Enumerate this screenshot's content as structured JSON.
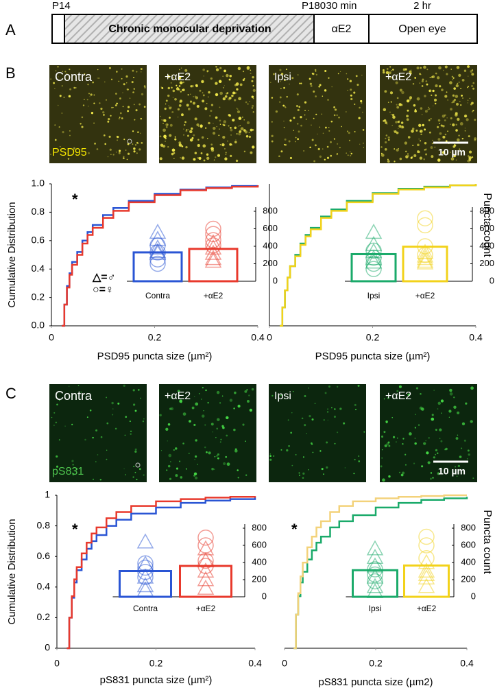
{
  "panel_labels": [
    "A",
    "B",
    "C"
  ],
  "timeline": {
    "start": "P14",
    "end": "P180",
    "treatment": "30 min",
    "recovery": "2 hr",
    "phase1": "Chronic monocular deprivation",
    "phase2": "αE2",
    "phase3": "Open eye"
  },
  "images": [
    {
      "labels": [
        "Contra",
        "+αE2",
        "Ipsi",
        "+αE2"
      ],
      "stain": "PSD95",
      "scale_bar": "10 µm"
    },
    {
      "labels": [
        "Contra",
        "+αE2",
        "Ipsi",
        "+αE2"
      ],
      "stain": "pS831",
      "scale_bar": "10 µm"
    }
  ],
  "chart_data": [
    {
      "type": "line",
      "step": true,
      "annotation": "*",
      "ylabel": "Cumulative Distribution",
      "xlabel": "PSD95 puncta size (µm²)",
      "x": [
        0.02,
        0.025,
        0.03,
        0.035,
        0.04,
        0.05,
        0.06,
        0.07,
        0.08,
        0.1,
        0.12,
        0.15,
        0.2,
        0.25,
        0.3,
        0.35,
        0.4
      ],
      "series": [
        {
          "color": "#2a55d4",
          "values": [
            0,
            0.15,
            0.28,
            0.37,
            0.45,
            0.52,
            0.6,
            0.66,
            0.71,
            0.78,
            0.83,
            0.88,
            0.93,
            0.96,
            0.975,
            0.985,
            0.99
          ]
        },
        {
          "color": "#e8392c",
          "values": [
            0,
            0.15,
            0.27,
            0.36,
            0.43,
            0.5,
            0.58,
            0.64,
            0.69,
            0.76,
            0.81,
            0.87,
            0.92,
            0.955,
            0.97,
            0.98,
            0.99
          ]
        }
      ],
      "xlim": [
        0,
        0.4
      ],
      "xticks": [
        0,
        0.2,
        0.4
      ],
      "ylim": [
        0,
        1
      ],
      "yticks": [
        {
          "value": 0,
          "label": "0.0"
        },
        0.2,
        0.4,
        0.6,
        0.8,
        {
          "value": 1,
          "label": "1.0"
        }
      ],
      "legend_notes": [
        "△=♂",
        "○=♀"
      ],
      "inset": {
        "type": "bar",
        "categories": [
          "Contra",
          "+αE2"
        ],
        "values": [
          330,
          370
        ],
        "colors": [
          "#2a55d4",
          "#e8392c"
        ],
        "ylim": [
          0,
          800
        ],
        "yticks": [
          0,
          200,
          400,
          600,
          800
        ],
        "triangles": [
          [
            560,
            480,
            380,
            340,
            320
          ],
          [
            440,
            380,
            320,
            260,
            230
          ]
        ],
        "circles": [
          [
            410,
            330,
            250,
            200
          ],
          [
            600,
            540,
            470,
            410
          ]
        ]
      }
    },
    {
      "type": "line",
      "step": true,
      "xlabel": "PSD95 puncta size (µm²)",
      "x": [
        0.02,
        0.025,
        0.03,
        0.035,
        0.04,
        0.05,
        0.06,
        0.07,
        0.08,
        0.1,
        0.12,
        0.15,
        0.2,
        0.25,
        0.3,
        0.35,
        0.4
      ],
      "series": [
        {
          "color": "#1aaa6a",
          "values": [
            0,
            0.13,
            0.25,
            0.34,
            0.42,
            0.5,
            0.58,
            0.64,
            0.69,
            0.77,
            0.82,
            0.88,
            0.935,
            0.965,
            0.98,
            0.99,
            1.0
          ]
        },
        {
          "color": "#f2d21a",
          "values": [
            0,
            0.13,
            0.25,
            0.34,
            0.42,
            0.49,
            0.57,
            0.63,
            0.68,
            0.76,
            0.81,
            0.87,
            0.93,
            0.96,
            0.975,
            0.99,
            1.0
          ]
        }
      ],
      "xlim": [
        0,
        0.4
      ],
      "xticks": [
        0,
        0.2,
        0.4
      ],
      "ylim": [
        0,
        1
      ],
      "inset": {
        "type": "bar",
        "categories": [
          "Ipsi",
          "+αE2"
        ],
        "values": [
          310,
          395
        ],
        "colors": [
          "#1aaa6a",
          "#f2d21a"
        ],
        "ylim": [
          0,
          800
        ],
        "yticks": [
          0,
          200,
          400,
          600,
          800
        ],
        "ylabel": "Puncta count",
        "triangles": [
          [
            560,
            420,
            340,
            260,
            220
          ],
          [
            330,
            290,
            260,
            230,
            210
          ]
        ],
        "circles": [
          [
            350,
            270,
            200,
            140
          ],
          [
            720,
            640,
            400,
            300
          ]
        ]
      }
    },
    {
      "type": "line",
      "step": true,
      "annotation": "*",
      "ylabel": "Cumulative Distribution",
      "xlabel": "pS831 puncta size (µm²)",
      "x": [
        0.02,
        0.025,
        0.03,
        0.035,
        0.04,
        0.05,
        0.06,
        0.07,
        0.08,
        0.1,
        0.12,
        0.15,
        0.2,
        0.25,
        0.3,
        0.35,
        0.4
      ],
      "series": [
        {
          "color": "#2a55d4",
          "values": [
            0,
            0.2,
            0.33,
            0.43,
            0.51,
            0.58,
            0.65,
            0.7,
            0.74,
            0.8,
            0.84,
            0.88,
            0.92,
            0.95,
            0.965,
            0.975,
            0.985
          ]
        },
        {
          "color": "#e8392c",
          "values": [
            0,
            0.2,
            0.34,
            0.45,
            0.53,
            0.62,
            0.69,
            0.75,
            0.79,
            0.85,
            0.89,
            0.93,
            0.96,
            0.975,
            0.985,
            0.99,
            0.995
          ]
        }
      ],
      "xlim": [
        0,
        0.4
      ],
      "xticks": [
        0,
        0.2,
        0.4
      ],
      "ylim": [
        0,
        1
      ],
      "yticks": [
        0,
        0.2,
        0.4,
        0.6,
        0.8,
        1
      ],
      "inset": {
        "type": "bar",
        "categories": [
          "Contra",
          "+αE2"
        ],
        "values": [
          300,
          360
        ],
        "colors": [
          "#2a55d4",
          "#e8392c"
        ],
        "ylim": [
          0,
          800
        ],
        "yticks": [
          0,
          200,
          400,
          600,
          800
        ],
        "triangles": [
          [
            640,
            380,
            230,
            130,
            80
          ],
          [
            560,
            420,
            300,
            200,
            100
          ]
        ],
        "circles": [
          [
            390,
            340,
            290,
            230
          ],
          [
            690,
            600,
            420,
            360
          ]
        ]
      }
    },
    {
      "type": "line",
      "step": true,
      "annotation": "*",
      "xlabel": "pS831 puncta size (µm2)",
      "x": [
        0.02,
        0.025,
        0.03,
        0.035,
        0.04,
        0.05,
        0.06,
        0.07,
        0.08,
        0.1,
        0.12,
        0.15,
        0.2,
        0.25,
        0.3,
        0.35,
        0.4
      ],
      "series": [
        {
          "color": "#1aaa6a",
          "values": [
            0,
            0.22,
            0.34,
            0.43,
            0.5,
            0.58,
            0.64,
            0.69,
            0.73,
            0.79,
            0.83,
            0.87,
            0.92,
            0.95,
            0.97,
            0.98,
            0.99
          ]
        },
        {
          "color": "#f3d27a",
          "values": [
            0,
            0.22,
            0.36,
            0.47,
            0.56,
            0.66,
            0.73,
            0.79,
            0.83,
            0.89,
            0.93,
            0.96,
            0.98,
            0.99,
            0.995,
            1.0,
            1.0
          ]
        }
      ],
      "xlim": [
        0,
        0.4
      ],
      "xticks": [
        0,
        0.2,
        0.4
      ],
      "ylim": [
        0,
        1
      ],
      "inset": {
        "type": "bar",
        "categories": [
          "Ipsi",
          "+αE2"
        ],
        "values": [
          310,
          365
        ],
        "colors": [
          "#1aaa6a",
          "#f2d21a"
        ],
        "ylim": [
          0,
          800
        ],
        "yticks": [
          0,
          200,
          400,
          600,
          800
        ],
        "ylabel": "Puncta count",
        "triangles": [
          [
            560,
            460,
            360,
            230,
            120,
            60
          ],
          [
            400,
            300,
            260,
            220,
            120
          ]
        ],
        "circles": [
          [
            320,
            260,
            180
          ],
          [
            700,
            600,
            450
          ]
        ]
      }
    }
  ]
}
